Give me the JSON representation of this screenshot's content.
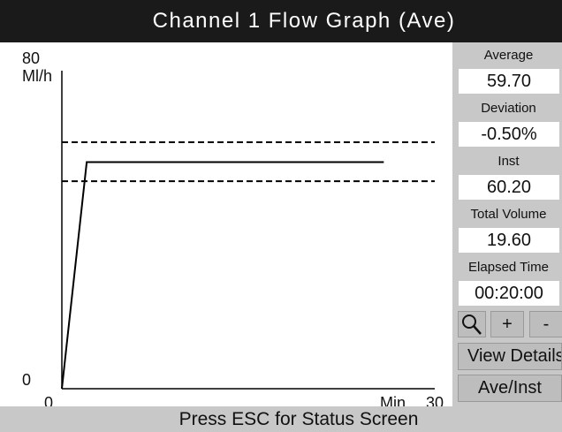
{
  "header": {
    "title": "Channel 1 Flow Graph (Ave)"
  },
  "graph": {
    "y_label": "Ml/h",
    "x_label": "Min",
    "ylim": [
      0,
      80
    ],
    "yticks": [
      0,
      80
    ],
    "xlim": [
      0,
      30
    ],
    "xticks": [
      0,
      30
    ],
    "limit_lines": [
      62,
      52.2
    ],
    "x": [
      0,
      2,
      25.9
    ],
    "values": [
      0,
      57,
      57
    ]
  },
  "panel": {
    "fields": [
      {
        "label": "Average",
        "value": "59.70"
      },
      {
        "label": "Deviation",
        "value": "-0.50%"
      },
      {
        "label": "Inst",
        "value": "60.20"
      },
      {
        "label": "Total Volume",
        "value": "19.60"
      },
      {
        "label": "Elapsed Time",
        "value": "00:20:00"
      }
    ],
    "zoom_buttons": [
      "+",
      "-"
    ],
    "buttons": [
      "View Details",
      "Ave/Inst"
    ]
  },
  "footer": {
    "text": "Press ESC for Status Screen"
  }
}
